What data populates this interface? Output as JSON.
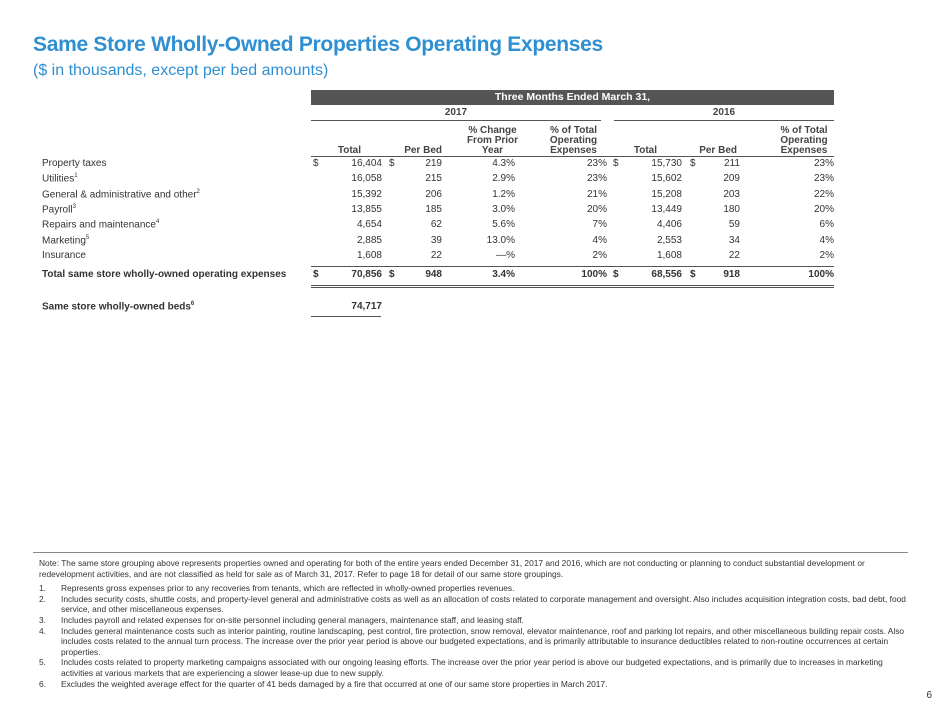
{
  "title": "Same Store Wholly-Owned Properties Operating Expenses",
  "subtitle": "($ in thousands, except per bed amounts)",
  "period_header": "Three Months Ended March 31,",
  "year_2017": "2017",
  "year_2016": "2016",
  "columns": {
    "total_2017": "Total",
    "per_bed_2017": "Per Bed",
    "pct_change": [
      "% Change",
      "From Prior",
      "Year"
    ],
    "pct_of_total_2017": [
      "% of Total",
      "Operating",
      "Expenses"
    ],
    "total_2016": "Total",
    "per_bed_2016": "Per Bed",
    "pct_of_total_2016": [
      "% of Total",
      "Operating",
      "Expenses"
    ]
  },
  "dollar": "$",
  "rows": [
    {
      "label": "Property taxes",
      "sup": "",
      "t17": "16,404",
      "pb17": "219",
      "chg": "4.3%",
      "p17": "23%",
      "t16": "15,730",
      "pb16": "211",
      "p16": "23%",
      "dollar": true
    },
    {
      "label": "Utilities",
      "sup": "1",
      "t17": "16,058",
      "pb17": "215",
      "chg": "2.9%",
      "p17": "23%",
      "t16": "15,602",
      "pb16": "209",
      "p16": "23%",
      "dollar": false
    },
    {
      "label": "General & administrative and other",
      "sup": "2",
      "t17": "15,392",
      "pb17": "206",
      "chg": "1.2%",
      "p17": "21%",
      "t16": "15,208",
      "pb16": "203",
      "p16": "22%",
      "dollar": false
    },
    {
      "label": "Payroll",
      "sup": "3",
      "t17": "13,855",
      "pb17": "185",
      "chg": "3.0%",
      "p17": "20%",
      "t16": "13,449",
      "pb16": "180",
      "p16": "20%",
      "dollar": false
    },
    {
      "label": "Repairs and maintenance",
      "sup": "4",
      "t17": "4,654",
      "pb17": "62",
      "chg": "5.6%",
      "p17": "7%",
      "t16": "4,406",
      "pb16": "59",
      "p16": "6%",
      "dollar": false
    },
    {
      "label": "Marketing",
      "sup": "5",
      "t17": "2,885",
      "pb17": "39",
      "chg": "13.0%",
      "p17": "4%",
      "t16": "2,553",
      "pb16": "34",
      "p16": "4%",
      "dollar": false
    },
    {
      "label": "Insurance",
      "sup": "",
      "t17": "1,608",
      "pb17": "22",
      "chg": "—%",
      "p17": "2%",
      "t16": "1,608",
      "pb16": "22",
      "p16": "2%",
      "dollar": false
    }
  ],
  "total_row": {
    "label": "Total same store wholly-owned operating expenses",
    "t17": "70,856",
    "pb17": "948",
    "chg": "3.4%",
    "p17": "100%",
    "t16": "68,556",
    "pb16": "918",
    "p16": "100%"
  },
  "beds_row": {
    "label": "Same store wholly-owned beds",
    "sup": "6",
    "value": "74,717"
  },
  "note_intro": "Note:  The same store grouping above represents properties owned and operating for both of the entire years ended December 31, 2017 and 2016, which are not conducting or planning to conduct substantial development or redevelopment activities, and are not classified as held for sale as of March 31, 2017.  Refer to page 18 for detail of our same store groupings.",
  "footnotes": [
    {
      "num": "1.",
      "text": "Represents gross expenses prior to any recoveries from tenants, which are reflected in wholly-owned properties revenues."
    },
    {
      "num": "2.",
      "text": "Includes security costs, shuttle costs, and property-level general and administrative costs as well as an allocation of costs related to corporate management and oversight. Also includes acquisition integration costs, bad debt, food service, and other miscellaneous expenses."
    },
    {
      "num": "3.",
      "text": "Includes payroll and related expenses for on-site personnel including general managers, maintenance staff, and leasing staff."
    },
    {
      "num": "4.",
      "text": "Includes general maintenance costs such as interior painting, routine landscaping, pest control, fire protection, snow removal, elevator maintenance, roof and parking lot repairs, and other miscellaneous building repair costs. Also includes costs related to the annual turn process. The increase over the prior year period is above our budgeted expectations, and is primarily attributable to insurance deductibles related to non-routine occurrences at certain properties."
    },
    {
      "num": "5.",
      "text": "Includes costs related to property marketing campaigns associated with our ongoing leasing efforts. The increase over the prior year period is above our budgeted expectations, and is primarily due to increases in marketing activities at various markets that are experiencing a slower lease-up due to new supply."
    },
    {
      "num": "6.",
      "text": "Excludes the weighted average effect for the quarter of 41 beds damaged by a fire that occurred at one of our same store properties in March 2017."
    }
  ],
  "page_number": "6"
}
